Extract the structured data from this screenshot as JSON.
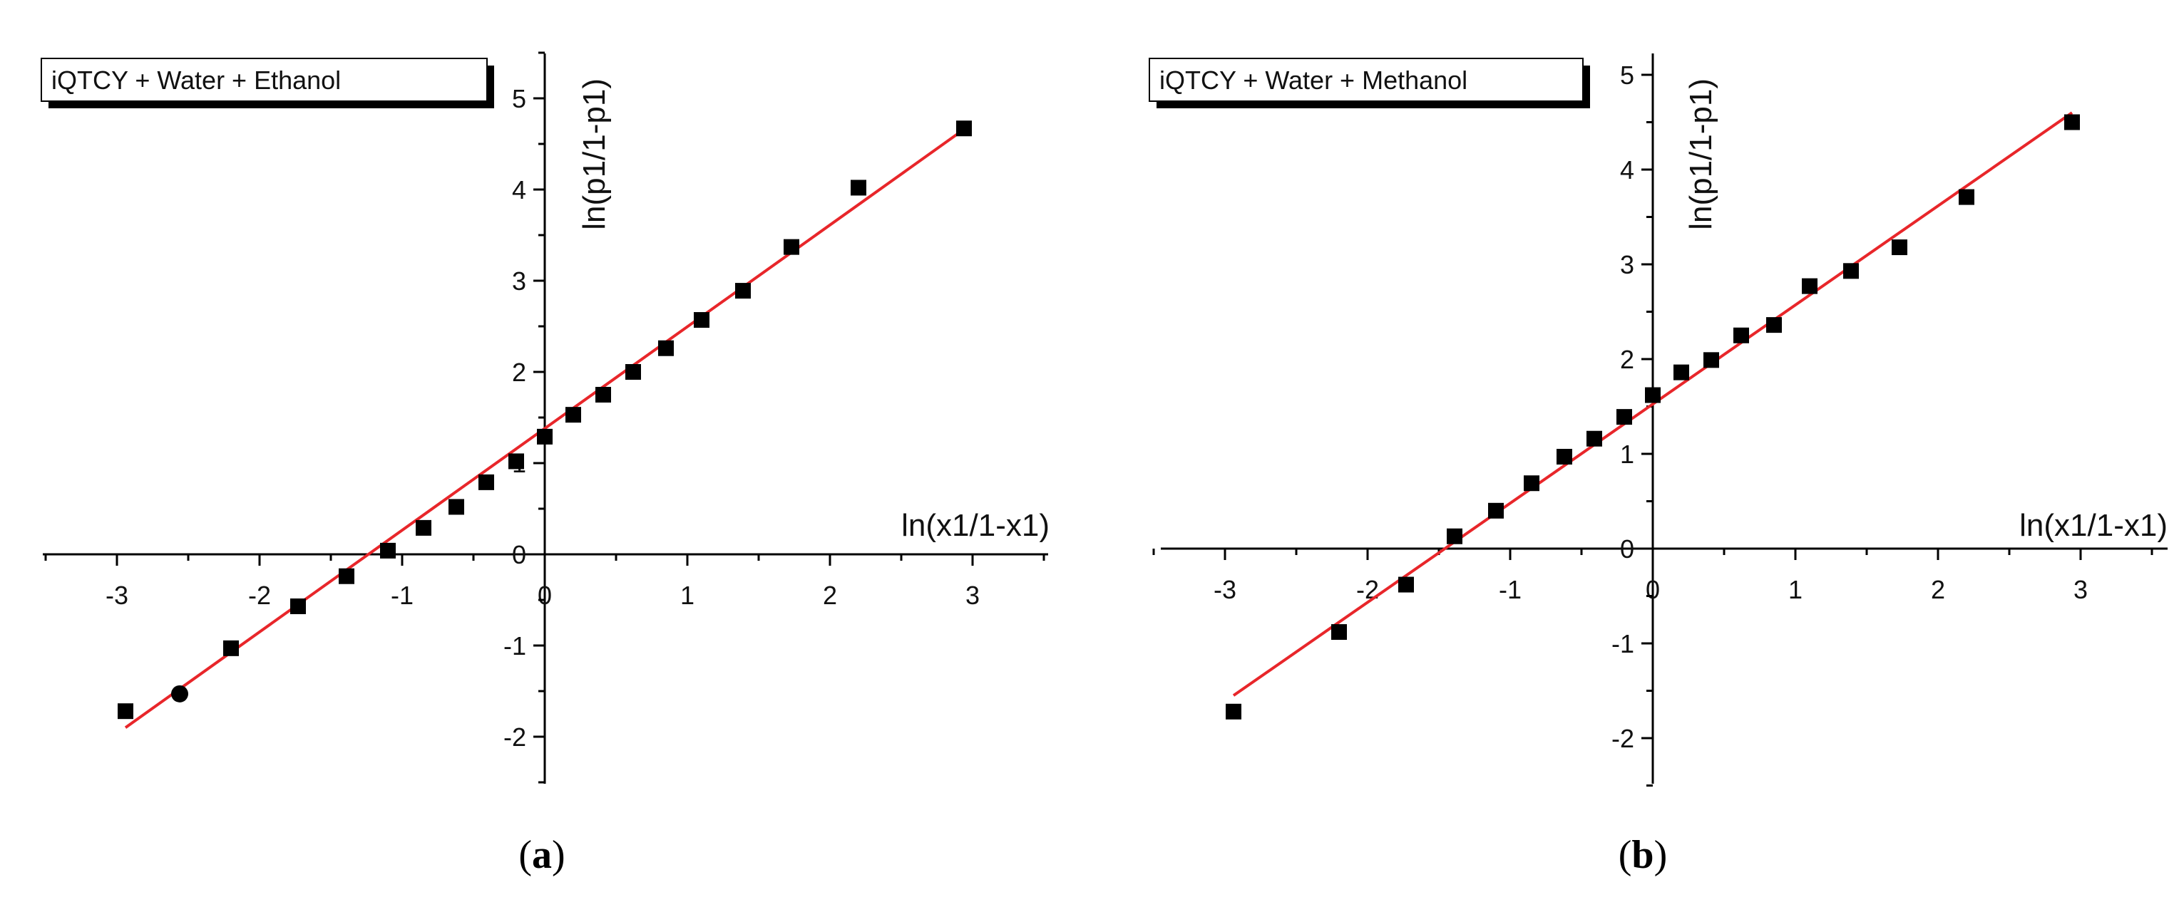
{
  "chart_data": [
    {
      "type": "scatter",
      "panel_label": "(a)",
      "legend": "iQTCY + Water + Ethanol",
      "xlabel": "ln(x1/1-x1)",
      "ylabel": "ln(p1/1-p1)",
      "xlim": [
        -3.5,
        3.5
      ],
      "ylim": [
        -2.5,
        5.5
      ],
      "xticks": [
        -3,
        -2,
        -1,
        0,
        1,
        2,
        3
      ],
      "yticks": [
        -2,
        -1,
        0,
        1,
        2,
        3,
        4,
        5
      ],
      "xtick_labels": [
        "-3",
        "-2",
        "-1",
        "0",
        "1",
        "2",
        "3"
      ],
      "ytick_labels": [
        "-2",
        "-1",
        "0",
        "1",
        "2",
        "3",
        "4",
        "5"
      ],
      "marker_color": "#000000",
      "fit_color": "#e8262a",
      "series": [
        {
          "x": [
            -2.94,
            -2.56,
            -2.2,
            -1.73,
            -1.39,
            -1.1,
            -0.85,
            -0.62,
            -0.41,
            -0.2,
            0.0,
            0.2,
            0.41,
            0.62,
            0.85,
            1.1,
            1.39,
            1.73,
            2.2,
            2.94
          ],
          "y": [
            -1.72,
            -1.53,
            -1.03,
            -0.57,
            -0.24,
            0.04,
            0.29,
            0.52,
            0.79,
            1.02,
            1.29,
            1.53,
            1.75,
            2.0,
            2.26,
            2.57,
            2.89,
            3.37,
            4.02,
            4.67
          ]
        }
      ],
      "fit": {
        "x": [
          -2.94,
          2.94
        ],
        "y": [
          -1.9,
          4.66
        ]
      }
    },
    {
      "type": "scatter",
      "panel_label": "(b)",
      "legend": "iQTCY + Water + Methanol",
      "xlabel": "ln(x1/1-x1)",
      "ylabel": "ln(p1/1-p1)",
      "xlim": [
        -3.5,
        3.5
      ],
      "ylim": [
        -2.5,
        5.0
      ],
      "xticks": [
        -3,
        -2,
        -1,
        0,
        1,
        2,
        3
      ],
      "yticks": [
        -2,
        -1,
        0,
        1,
        2,
        3,
        4,
        5
      ],
      "xtick_labels": [
        "-3",
        "-2",
        "-1",
        "0",
        "1",
        "2",
        "3"
      ],
      "ytick_labels": [
        "-2",
        "-1",
        "0",
        "1",
        "2",
        "3",
        "4",
        "5"
      ],
      "marker_color": "#000000",
      "fit_color": "#e8262a",
      "series": [
        {
          "x": [
            -2.94,
            -2.2,
            -1.73,
            -1.39,
            -1.1,
            -0.85,
            -0.62,
            -0.41,
            -0.2,
            0.0,
            0.2,
            0.41,
            0.62,
            0.85,
            1.1,
            1.39,
            1.73,
            2.2,
            2.94
          ],
          "y": [
            -1.72,
            -0.88,
            -0.38,
            0.13,
            0.4,
            0.69,
            0.97,
            1.16,
            1.39,
            1.62,
            1.86,
            1.99,
            2.25,
            2.36,
            2.77,
            2.93,
            3.18,
            3.71,
            4.5
          ]
        }
      ],
      "fit": {
        "x": [
          -2.94,
          2.94
        ],
        "y": [
          -1.55,
          4.6
        ]
      }
    }
  ]
}
